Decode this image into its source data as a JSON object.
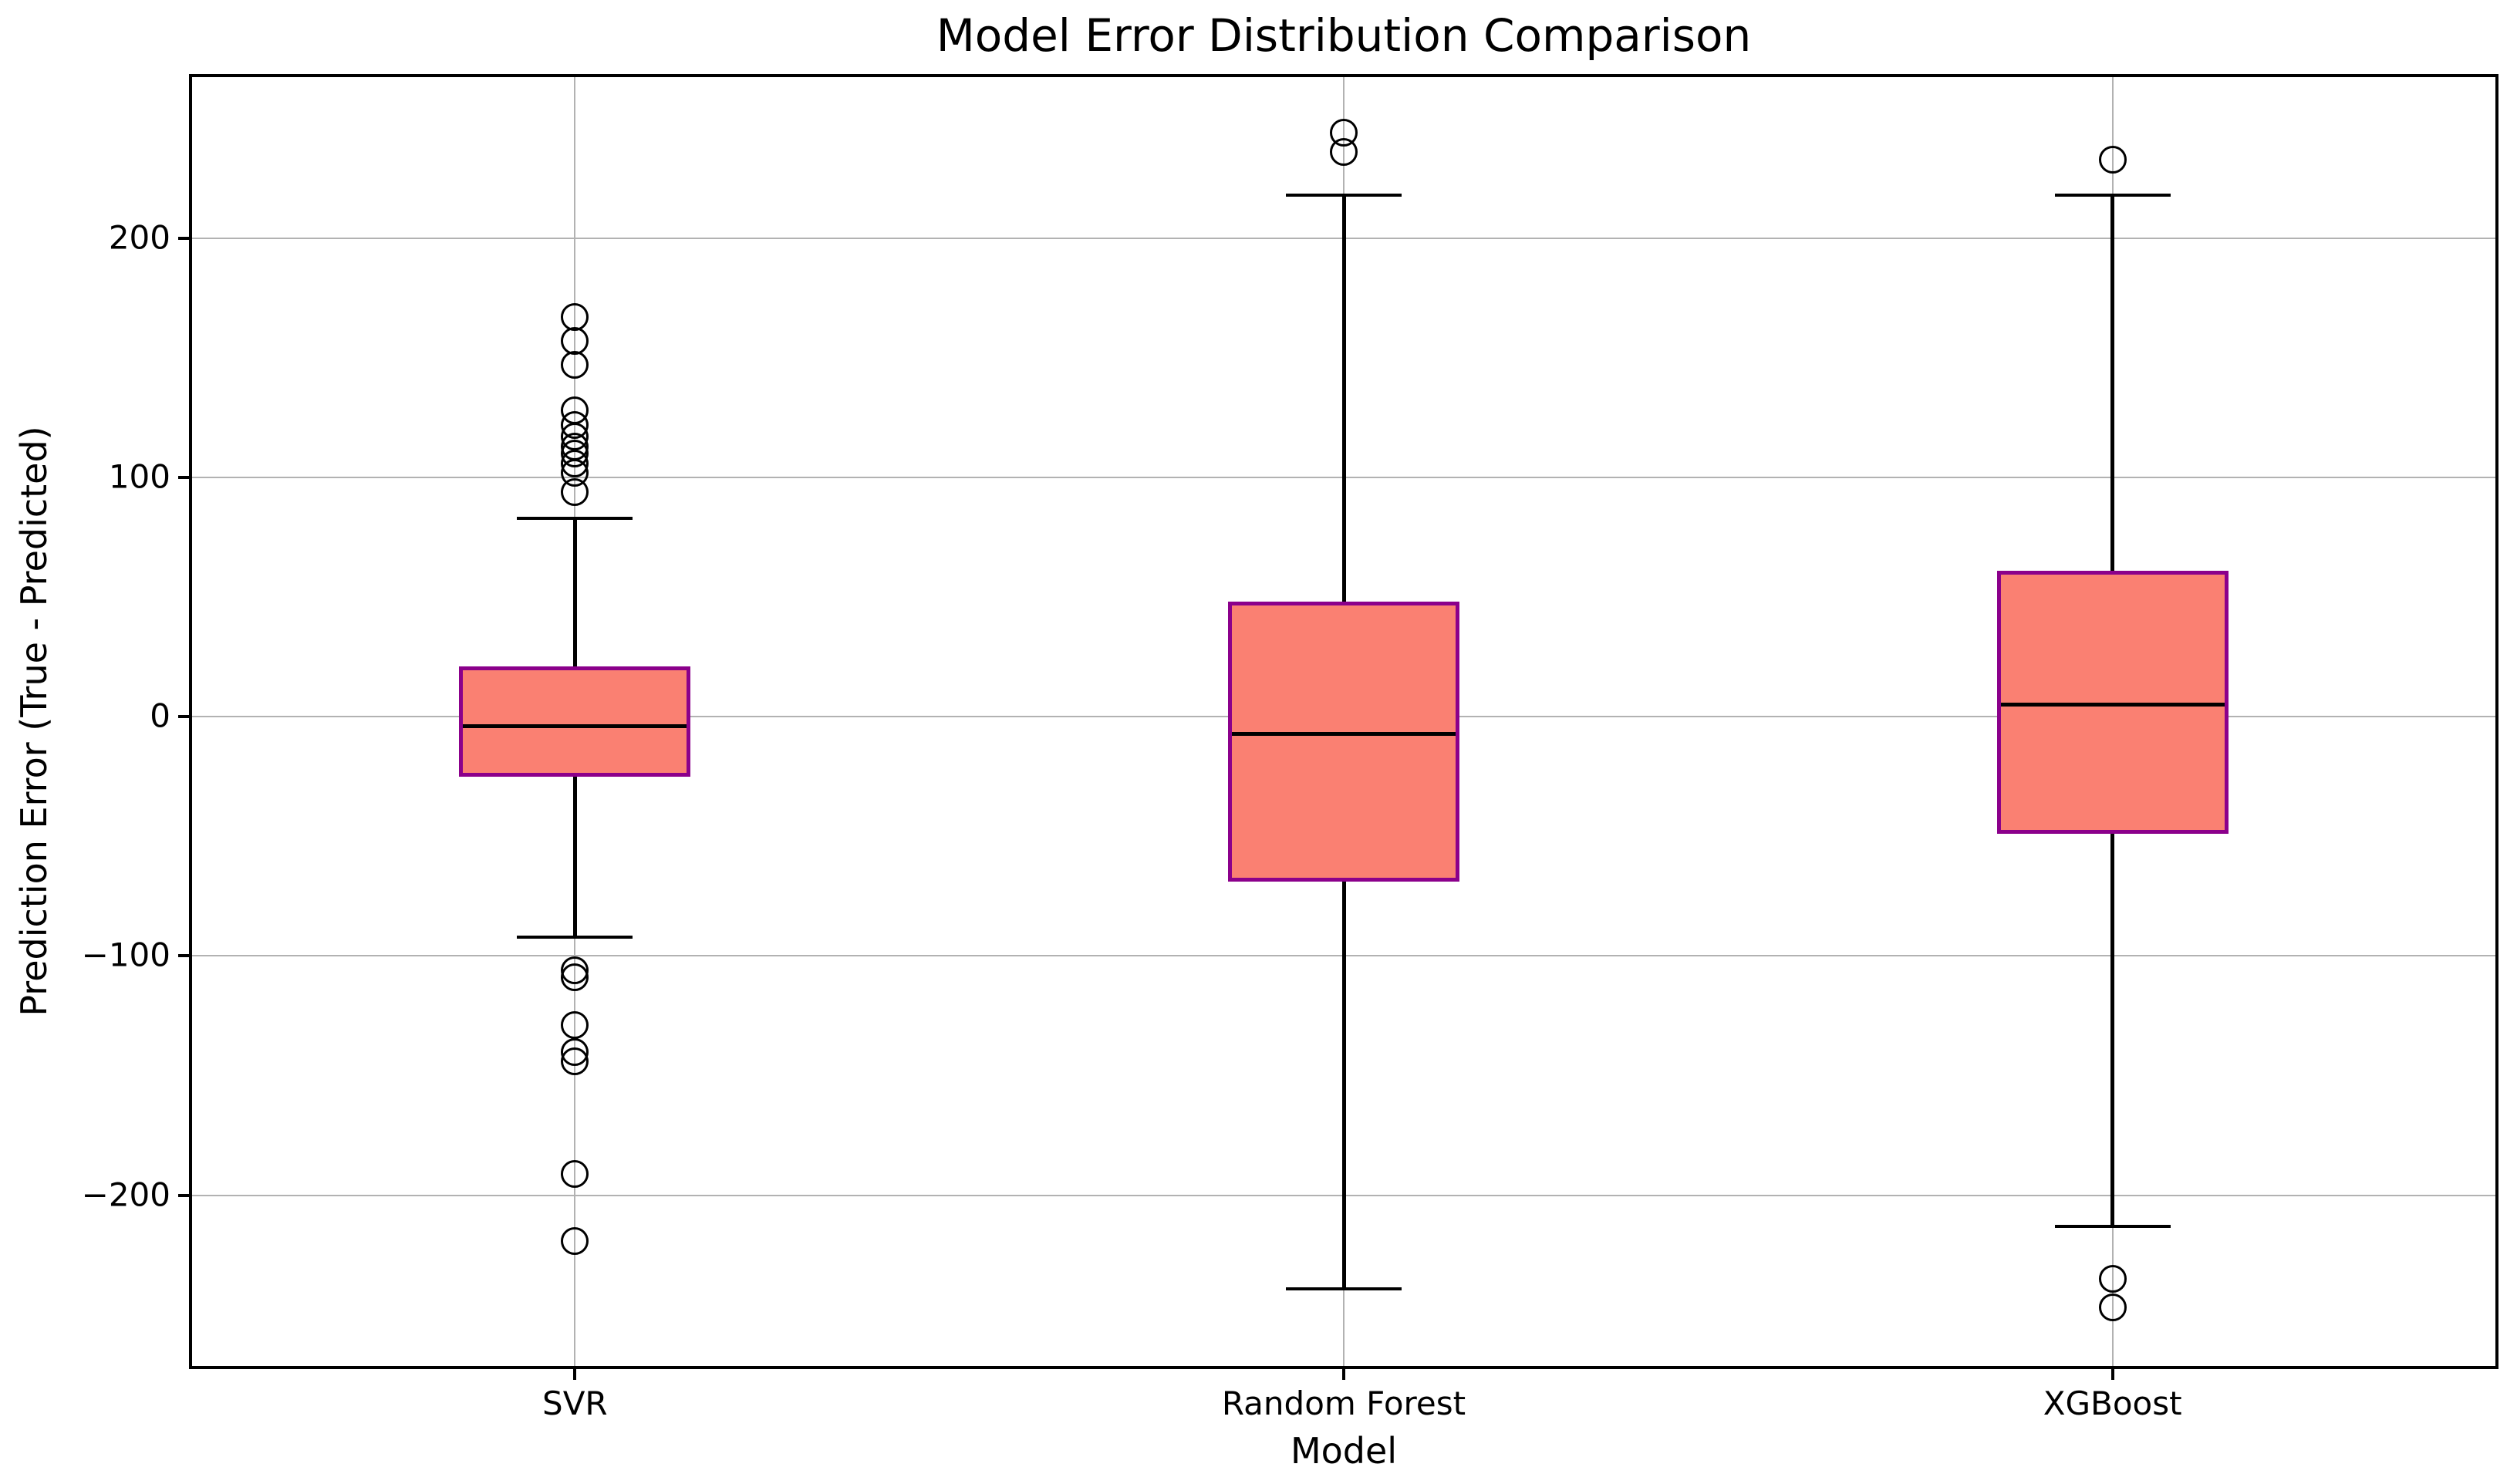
{
  "title": "Model Error Distribution Comparison",
  "x_axis": {
    "label": "Model",
    "categories": [
      "SVR",
      "Random Forest",
      "XGBoost"
    ]
  },
  "y_axis": {
    "label": "Prediction Error (True - Predicted)",
    "min": -272,
    "max": 268,
    "ticks": [
      {
        "value": -200,
        "label": "−200"
      },
      {
        "value": -100,
        "label": "−100"
      },
      {
        "value": 0,
        "label": "0"
      },
      {
        "value": 100,
        "label": "100"
      },
      {
        "value": 200,
        "label": "200"
      }
    ]
  },
  "style": {
    "background": "#FFFFFF",
    "box_fill": "#FA8072",
    "box_edge": "#8B008B",
    "median_color": "#000000",
    "whisker_color": "#000000",
    "outlier_color": "#000000",
    "grid_color": "#B2B2B2",
    "spine_color": "#000000"
  },
  "chart_data": {
    "type": "boxplot",
    "title": "Model Error Distribution Comparison",
    "xlabel": "Model",
    "ylabel": "Prediction Error (True - Predicted)",
    "ylim": [
      -272,
      268
    ],
    "grid": true,
    "legend": false,
    "categories": [
      "SVR",
      "Random Forest",
      "XGBoost"
    ],
    "series": [
      {
        "name": "SVR",
        "whisker_low": -92,
        "q1": -25,
        "median": -4,
        "q3": 21,
        "whisker_high": 83,
        "outliers": [
          167,
          157,
          147,
          128,
          122,
          117,
          113,
          110,
          106,
          102,
          94,
          -106,
          -109,
          -129,
          -140,
          -144,
          -191,
          -219
        ]
      },
      {
        "name": "Random Forest",
        "whisker_low": -239,
        "q1": -69,
        "median": -7,
        "q3": 48,
        "whisker_high": 218,
        "outliers": [
          244,
          236
        ]
      },
      {
        "name": "XGBoost",
        "whisker_low": -213,
        "q1": -49,
        "median": 5,
        "q3": 61,
        "whisker_high": 218,
        "outliers": [
          233,
          -235,
          -247
        ]
      }
    ]
  }
}
